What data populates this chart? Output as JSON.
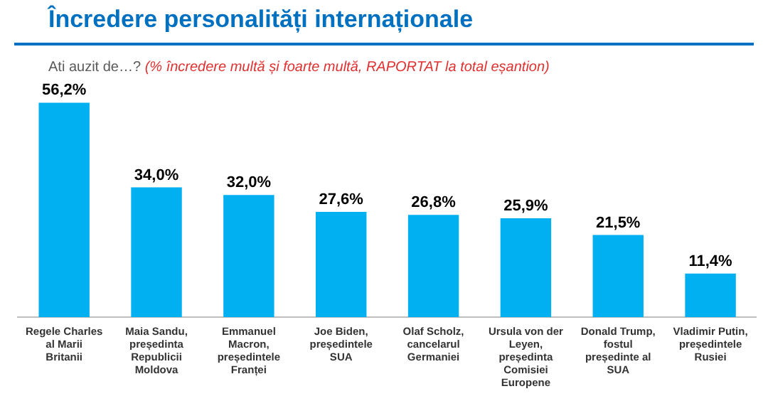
{
  "chart_data": {
    "type": "bar",
    "title": "Încredere personalități internaționale",
    "subtitle": "Ati auzit de…?",
    "annotations": [
      "(% încredere multă și foarte multă, RAPORTAT la total eșantion)"
    ],
    "categories": [
      "Regele Charles al Marii Britanii",
      "Maia Sandu, președinta Republicii Moldova",
      "Emmanuel Macron, președintele Franței",
      "Joe Biden, președintele SUA",
      "Olaf Scholz, cancelarul Germaniei",
      "Ursula von der Leyen, președinta Comisiei Europene",
      "Donald Trump, fostul președinte al SUA",
      "Vladimir Putin, președintele Rusiei"
    ],
    "values": [
      56.2,
      34.0,
      32.0,
      27.6,
      26.8,
      25.9,
      21.5,
      11.4
    ],
    "value_labels": [
      "56,2%",
      "34,0%",
      "32,0%",
      "27,6%",
      "26,8%",
      "25,9%",
      "21,5%",
      "11,4%"
    ],
    "color": "#00b0f0",
    "grid": false,
    "legend": false
  }
}
